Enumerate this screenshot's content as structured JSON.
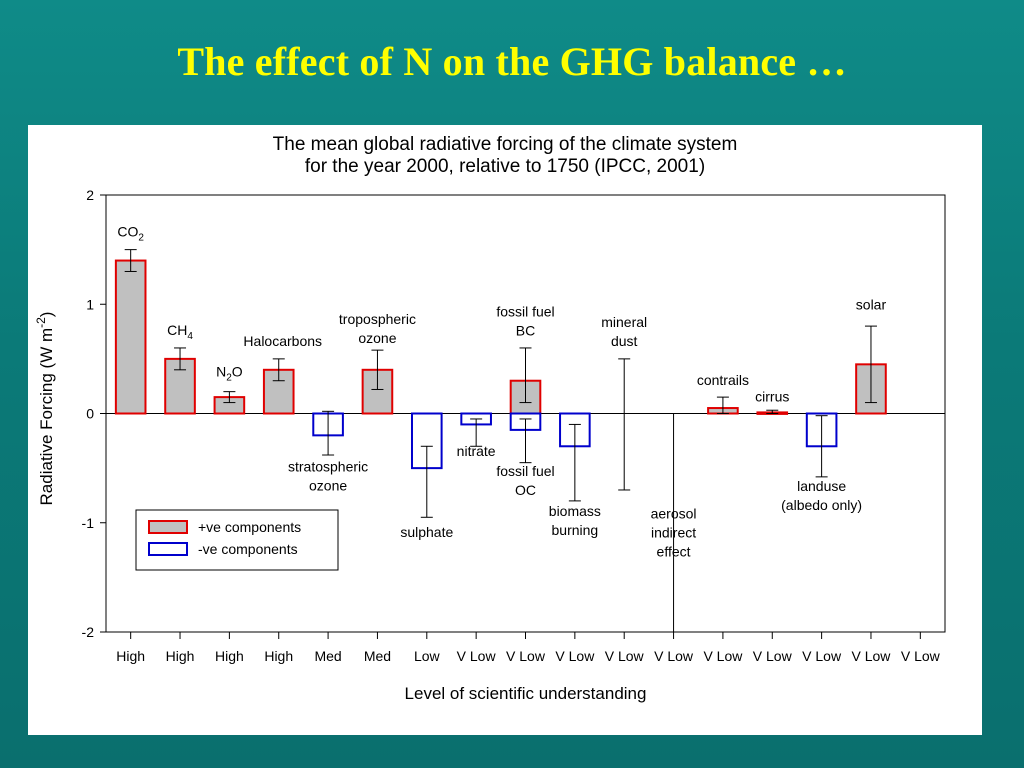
{
  "slide": {
    "title": "The effect of N on the GHG balance …"
  },
  "chart_data": {
    "type": "bar",
    "title_lines": [
      "The mean global radiative forcing of the climate system",
      "for the year 2000, relative to 1750 (IPCC, 2001)"
    ],
    "ylabel": "Radiative Forcing (W m-2)",
    "xlabel": "Level of scientific understanding",
    "ylim": [
      -2,
      2
    ],
    "yticks": [
      2,
      1,
      0,
      -1,
      -2
    ],
    "categories": [
      "CO2",
      "CH4",
      "N2O",
      "Halocarbons",
      "stratospheric ozone",
      "tropospheric ozone",
      "sulphate",
      "nitrate",
      "fossil fuel BC",
      "fossil fuel OC",
      "biomass burning",
      "mineral dust",
      "aerosol indirect effect",
      "contrails",
      "cirrus",
      "landuse (albedo only)",
      "solar"
    ],
    "understanding": [
      "High",
      "High",
      "High",
      "High",
      "Med",
      "Med",
      "Low",
      "V Low",
      "V Low",
      "V Low",
      "V Low",
      "V Low",
      "V Low",
      "V Low",
      "V Low",
      "V Low",
      "V Low"
    ],
    "bars": [
      {
        "slot": 0,
        "value": 1.4,
        "low": 1.3,
        "high": 1.5,
        "sign": "pos"
      },
      {
        "slot": 1,
        "value": 0.5,
        "low": 0.4,
        "high": 0.6,
        "sign": "pos"
      },
      {
        "slot": 2,
        "value": 0.15,
        "low": 0.1,
        "high": 0.2,
        "sign": "pos"
      },
      {
        "slot": 3,
        "value": 0.4,
        "low": 0.3,
        "high": 0.5,
        "sign": "pos"
      },
      {
        "slot": 4,
        "value": -0.2,
        "low": -0.38,
        "high": 0.02,
        "sign": "neg"
      },
      {
        "slot": 5,
        "value": 0.4,
        "low": 0.22,
        "high": 0.58,
        "sign": "pos"
      },
      {
        "slot": 6,
        "value": -0.5,
        "low": -0.95,
        "high": -0.3,
        "sign": "neg"
      },
      {
        "slot": 7,
        "value": -0.1,
        "low": -0.3,
        "high": -0.05,
        "sign": "neg"
      },
      {
        "slot": 8,
        "value": 0.3,
        "low": 0.1,
        "high": 0.6,
        "sign": "pos"
      },
      {
        "slot": 8,
        "value": -0.15,
        "low": -0.45,
        "high": -0.05,
        "sign": "neg"
      },
      {
        "slot": 9,
        "value": -0.3,
        "low": -0.8,
        "high": -0.1,
        "sign": "neg"
      },
      {
        "slot": 10,
        "value": null,
        "low": -0.7,
        "high": 0.5,
        "sign": "none"
      },
      {
        "slot": 11,
        "value": null,
        "low": -2.0,
        "high": 0.0,
        "sign": "none"
      },
      {
        "slot": 12,
        "value": 0.05,
        "low": 0.0,
        "high": 0.15,
        "sign": "pos"
      },
      {
        "slot": 13,
        "value": 0.01,
        "low": 0.0,
        "high": 0.03,
        "sign": "pos"
      },
      {
        "slot": 14,
        "value": -0.3,
        "low": -0.58,
        "high": -0.02,
        "sign": "neg"
      },
      {
        "slot": 15,
        "value": 0.45,
        "low": 0.1,
        "high": 0.8,
        "sign": "pos"
      }
    ],
    "annotations": [
      {
        "slot": 0,
        "y": 1.62,
        "parts": [
          [
            "CO",
            ""
          ],
          [
            "2",
            "sub"
          ]
        ]
      },
      {
        "slot": 1,
        "y": 0.72,
        "parts": [
          [
            "CH",
            ""
          ],
          [
            "4",
            "sub"
          ]
        ]
      },
      {
        "slot": 2,
        "y": 0.34,
        "parts": [
          [
            "N",
            ""
          ],
          [
            "2",
            "sub"
          ],
          [
            "O",
            ""
          ]
        ]
      },
      {
        "slot": 3,
        "y": 0.62,
        "dx": 4,
        "parts": [
          [
            "Halocarbons",
            ""
          ]
        ]
      },
      {
        "slot": 4,
        "y": -0.53,
        "lines": [
          "stratospheric",
          "ozone"
        ]
      },
      {
        "slot": 5,
        "y": 0.82,
        "lines": [
          "tropospheric",
          "ozone"
        ]
      },
      {
        "slot": 6,
        "y": -1.13,
        "lines": [
          "sulphate"
        ]
      },
      {
        "slot": 7,
        "y": -0.39,
        "lines": [
          "nitrate"
        ]
      },
      {
        "slot": 8,
        "y": 0.89,
        "lines": [
          "fossil fuel",
          "BC"
        ]
      },
      {
        "slot": 8,
        "y": -0.57,
        "lines": [
          "fossil fuel",
          "OC"
        ]
      },
      {
        "slot": 9,
        "y": -0.94,
        "lines": [
          "biomass",
          "burning"
        ]
      },
      {
        "slot": 10,
        "y": 0.79,
        "lines": [
          "mineral",
          "dust"
        ]
      },
      {
        "slot": 11,
        "y": -0.96,
        "lines": [
          "aerosol",
          "indirect",
          "effect"
        ]
      },
      {
        "slot": 12,
        "y": 0.26,
        "lines": [
          "contrails"
        ]
      },
      {
        "slot": 13,
        "y": 0.11,
        "lines": [
          "cirrus"
        ]
      },
      {
        "slot": 14,
        "y": -0.71,
        "lines": [
          "landuse",
          "(albedo only)"
        ]
      },
      {
        "slot": 15,
        "y": 0.95,
        "lines": [
          "solar"
        ]
      }
    ],
    "legend": {
      "position": "lower-left",
      "items": [
        {
          "label": "+ve components",
          "sign": "pos"
        },
        {
          "label": "-ve components",
          "sign": "neg"
        }
      ]
    },
    "colors": {
      "pos_fill": "#c0c0c0",
      "pos_edge": "#e00000",
      "neg_fill": "#ffffff",
      "neg_edge": "#0000cc",
      "axis": "#000000"
    }
  }
}
